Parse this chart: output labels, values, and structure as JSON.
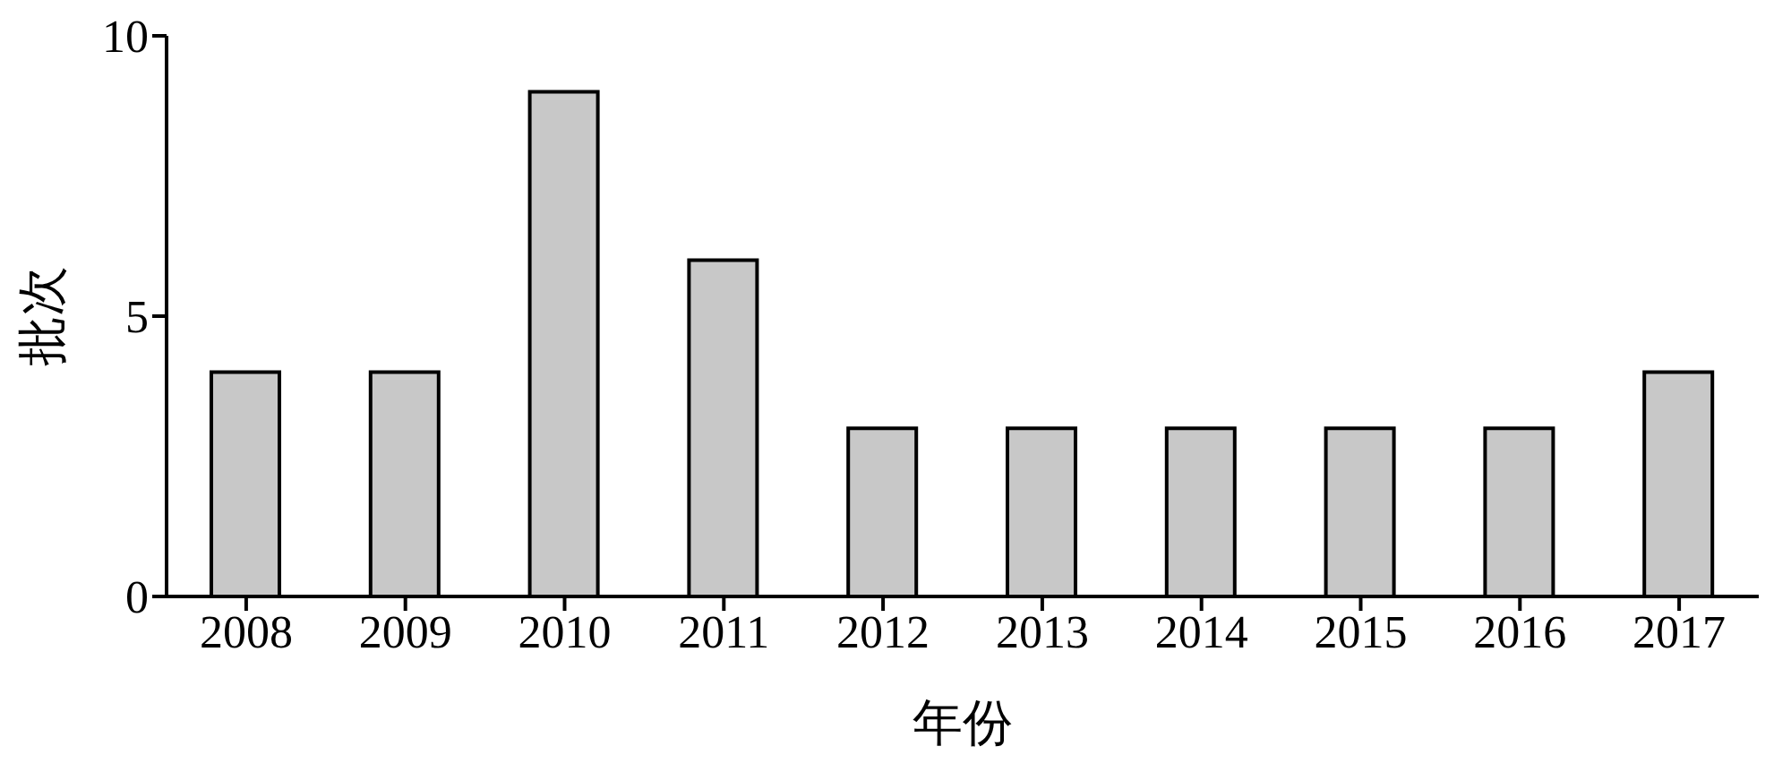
{
  "chart_data": {
    "type": "bar",
    "xlabel": "年份",
    "ylabel": "批次",
    "categories": [
      "2008",
      "2009",
      "2010",
      "2011",
      "2012",
      "2013",
      "2014",
      "2015",
      "2016",
      "2017"
    ],
    "values": [
      4,
      4,
      9,
      6,
      3,
      3,
      3,
      3,
      3,
      4
    ],
    "color": "#c8c8c8",
    "ylim": [
      0,
      10
    ],
    "yticks": [
      0,
      5,
      10
    ]
  }
}
